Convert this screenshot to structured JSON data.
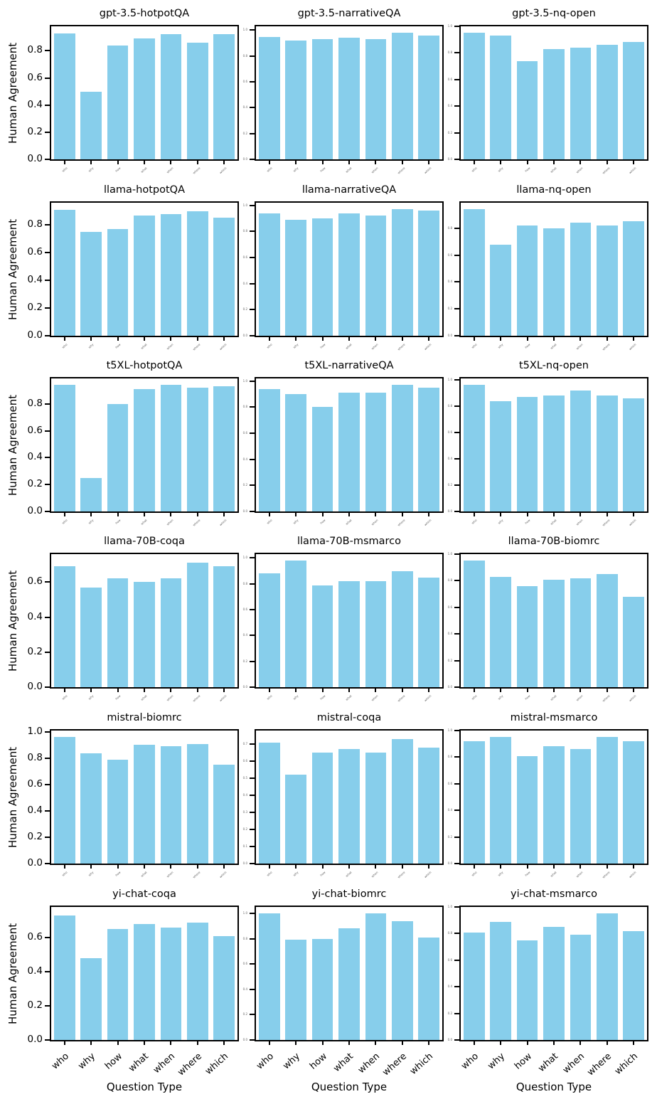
{
  "style": {
    "bar_color": "#87CEEB",
    "axis_color": "#000000",
    "tiny_label_color": "#666666"
  },
  "figure": {
    "ylabel": "Human Agreement",
    "xlabel": "Question Type"
  },
  "chart_data": [
    {
      "type": "bar",
      "title": "gpt-3.5-hotpotQA",
      "categories": [
        "who",
        "why",
        "how",
        "what",
        "when",
        "where",
        "which"
      ],
      "values": [
        0.93,
        0.5,
        0.84,
        0.89,
        0.92,
        0.86,
        0.92
      ],
      "ylim": [
        0,
        0.98
      ],
      "yticks": [
        0,
        0.2,
        0.4,
        0.6,
        0.8
      ],
      "ytick_labels": "full",
      "xtick_labels": "tiny",
      "ylabel": "Human Agreement",
      "xlabel": "",
      "grid": false
    },
    {
      "type": "bar",
      "title": "gpt-3.5-narrativeQA",
      "categories": [
        "who",
        "why",
        "how",
        "what",
        "when",
        "where",
        "which"
      ],
      "values": [
        0.95,
        0.92,
        0.93,
        0.94,
        0.93,
        0.98,
        0.96
      ],
      "ylim": [
        0,
        1.03
      ],
      "yticks": [
        0,
        0.2,
        0.4,
        0.6,
        0.8,
        1.0
      ],
      "ytick_labels": "tiny",
      "xtick_labels": "tiny",
      "ylabel": "",
      "xlabel": "",
      "grid": false
    },
    {
      "type": "bar",
      "title": "gpt-3.5-nq-open",
      "categories": [
        "who",
        "why",
        "how",
        "what",
        "when",
        "where",
        "which"
      ],
      "values": [
        0.95,
        0.93,
        0.74,
        0.83,
        0.84,
        0.86,
        0.88
      ],
      "ylim": [
        0,
        1.0
      ],
      "yticks": [
        0,
        0.2,
        0.4,
        0.6,
        0.8,
        1.0
      ],
      "ytick_labels": "tiny",
      "xtick_labels": "tiny",
      "ylabel": "",
      "xlabel": "",
      "grid": false
    },
    {
      "type": "bar",
      "title": "llama-hotpotQA",
      "categories": [
        "who",
        "why",
        "how",
        "what",
        "when",
        "where",
        "which"
      ],
      "values": [
        0.91,
        0.75,
        0.77,
        0.87,
        0.88,
        0.9,
        0.85
      ],
      "ylim": [
        0,
        0.96
      ],
      "yticks": [
        0,
        0.2,
        0.4,
        0.6,
        0.8
      ],
      "ytick_labels": "full",
      "xtick_labels": "tiny",
      "ylabel": "Human Agreement",
      "xlabel": "",
      "grid": false
    },
    {
      "type": "bar",
      "title": "llama-narrativeQA",
      "categories": [
        "who",
        "why",
        "how",
        "what",
        "when",
        "where",
        "which"
      ],
      "values": [
        0.94,
        0.89,
        0.9,
        0.94,
        0.92,
        0.97,
        0.96
      ],
      "ylim": [
        0,
        1.02
      ],
      "yticks": [
        0,
        0.2,
        0.4,
        0.6,
        0.8,
        1.0
      ],
      "ytick_labels": "tiny",
      "xtick_labels": "tiny",
      "ylabel": "",
      "xlabel": "",
      "grid": false
    },
    {
      "type": "bar",
      "title": "llama-nq-open",
      "categories": [
        "who",
        "why",
        "how",
        "what",
        "when",
        "where",
        "which"
      ],
      "values": [
        0.94,
        0.68,
        0.82,
        0.8,
        0.84,
        0.82,
        0.85
      ],
      "ylim": [
        0,
        0.99
      ],
      "yticks": [
        0,
        0.2,
        0.4,
        0.6,
        0.8
      ],
      "ytick_labels": "tiny",
      "xtick_labels": "tiny",
      "ylabel": "",
      "xlabel": "",
      "grid": false
    },
    {
      "type": "bar",
      "title": "t5XL-hotpotQA",
      "categories": [
        "who",
        "why",
        "how",
        "what",
        "when",
        "where",
        "which"
      ],
      "values": [
        0.94,
        0.25,
        0.8,
        0.91,
        0.94,
        0.92,
        0.93
      ],
      "ylim": [
        0,
        0.99
      ],
      "yticks": [
        0,
        0.2,
        0.4,
        0.6,
        0.8
      ],
      "ytick_labels": "full",
      "xtick_labels": "tiny",
      "ylabel": "Human Agreement",
      "xlabel": "",
      "grid": false
    },
    {
      "type": "bar",
      "title": "t5XL-narrativeQA",
      "categories": [
        "who",
        "why",
        "how",
        "what",
        "when",
        "where",
        "which"
      ],
      "values": [
        0.94,
        0.9,
        0.8,
        0.91,
        0.91,
        0.97,
        0.95
      ],
      "ylim": [
        0,
        1.02
      ],
      "yticks": [
        0,
        0.2,
        0.4,
        0.6,
        0.8,
        1.0
      ],
      "ytick_labels": "tiny",
      "xtick_labels": "tiny",
      "ylabel": "",
      "xlabel": "",
      "grid": false
    },
    {
      "type": "bar",
      "title": "t5XL-nq-open",
      "categories": [
        "who",
        "why",
        "how",
        "what",
        "when",
        "where",
        "which"
      ],
      "values": [
        0.96,
        0.84,
        0.87,
        0.88,
        0.92,
        0.88,
        0.86
      ],
      "ylim": [
        0,
        1.01
      ],
      "yticks": [
        0,
        0.2,
        0.4,
        0.6,
        0.8,
        1.0
      ],
      "ytick_labels": "tiny",
      "xtick_labels": "tiny",
      "ylabel": "",
      "xlabel": "",
      "grid": false
    },
    {
      "type": "bar",
      "title": "llama-70B-coqa",
      "categories": [
        "who",
        "why",
        "how",
        "what",
        "when",
        "where",
        "which"
      ],
      "values": [
        0.69,
        0.57,
        0.62,
        0.6,
        0.62,
        0.71,
        0.69
      ],
      "ylim": [
        0,
        0.76
      ],
      "yticks": [
        0,
        0.2,
        0.4,
        0.6
      ],
      "ytick_labels": "full",
      "xtick_labels": "tiny",
      "ylabel": "Human Agreement",
      "xlabel": "",
      "grid": false
    },
    {
      "type": "bar",
      "title": "llama-70B-msmarco",
      "categories": [
        "who",
        "why",
        "how",
        "what",
        "when",
        "where",
        "which"
      ],
      "values": [
        0.88,
        0.98,
        0.79,
        0.82,
        0.82,
        0.9,
        0.85
      ],
      "ylim": [
        0,
        1.03
      ],
      "yticks": [
        0,
        0.2,
        0.4,
        0.6,
        0.8,
        1.0
      ],
      "ytick_labels": "tiny",
      "xtick_labels": "tiny",
      "ylabel": "",
      "xlabel": "",
      "grid": false
    },
    {
      "type": "bar",
      "title": "llama-70B-biomrc",
      "categories": [
        "who",
        "why",
        "how",
        "what",
        "when",
        "where",
        "which"
      ],
      "values": [
        0.95,
        0.83,
        0.76,
        0.81,
        0.82,
        0.85,
        0.68
      ],
      "ylim": [
        0,
        1.0
      ],
      "yticks": [
        0,
        0.2,
        0.4,
        0.6,
        0.8,
        1.0
      ],
      "ytick_labels": "tiny",
      "xtick_labels": "tiny",
      "ylabel": "",
      "xlabel": "",
      "grid": false
    },
    {
      "type": "bar",
      "title": "mistral-biomrc",
      "categories": [
        "who",
        "why",
        "how",
        "what",
        "when",
        "where",
        "which"
      ],
      "values": [
        0.96,
        0.84,
        0.79,
        0.9,
        0.89,
        0.91,
        0.75
      ],
      "ylim": [
        0,
        1.01
      ],
      "yticks": [
        0,
        0.2,
        0.4,
        0.6,
        0.8,
        1.0
      ],
      "ytick_labels": "full",
      "xtick_labels": "tiny",
      "ylabel": "Human Agreement",
      "xlabel": "",
      "grid": false
    },
    {
      "type": "bar",
      "title": "mistral-coqa",
      "categories": [
        "who",
        "why",
        "how",
        "what",
        "when",
        "where",
        "which"
      ],
      "values": [
        0.71,
        0.52,
        0.65,
        0.67,
        0.65,
        0.73,
        0.68
      ],
      "ylim": [
        0,
        0.78
      ],
      "yticks": [
        0,
        0.1,
        0.2,
        0.3,
        0.4,
        0.5,
        0.6,
        0.7
      ],
      "ytick_labels": "tiny",
      "xtick_labels": "tiny",
      "ylabel": "",
      "xlabel": "",
      "grid": false
    },
    {
      "type": "bar",
      "title": "mistral-msmarco",
      "categories": [
        "who",
        "why",
        "how",
        "what",
        "when",
        "where",
        "which"
      ],
      "values": [
        0.92,
        0.95,
        0.81,
        0.88,
        0.86,
        0.95,
        0.92
      ],
      "ylim": [
        0,
        1.0
      ],
      "yticks": [
        0,
        0.2,
        0.4,
        0.6,
        0.8,
        1.0
      ],
      "ytick_labels": "tiny",
      "xtick_labels": "tiny",
      "ylabel": "",
      "xlabel": "",
      "grid": false
    },
    {
      "type": "bar",
      "title": "yi-chat-coqa",
      "categories": [
        "who",
        "why",
        "how",
        "what",
        "when",
        "where",
        "which"
      ],
      "values": [
        0.73,
        0.48,
        0.65,
        0.68,
        0.66,
        0.69,
        0.61
      ],
      "ylim": [
        0,
        0.78
      ],
      "yticks": [
        0,
        0.2,
        0.4,
        0.6
      ],
      "ytick_labels": "full",
      "xtick_labels": "full",
      "ylabel": "Human Agreement",
      "xlabel": "Question Type",
      "grid": false
    },
    {
      "type": "bar",
      "title": "yi-chat-biomrc",
      "categories": [
        "who",
        "why",
        "how",
        "what",
        "when",
        "where",
        "which"
      ],
      "values": [
        1.0,
        0.79,
        0.8,
        0.88,
        1.0,
        0.94,
        0.81
      ],
      "ylim": [
        0,
        1.05
      ],
      "yticks": [
        0,
        0.2,
        0.4,
        0.6,
        0.8,
        1.0
      ],
      "ytick_labels": "tiny",
      "xtick_labels": "full",
      "ylabel": "",
      "xlabel": "Question Type",
      "grid": false
    },
    {
      "type": "bar",
      "title": "yi-chat-msmarco",
      "categories": [
        "who",
        "why",
        "how",
        "what",
        "when",
        "where",
        "which"
      ],
      "values": [
        0.81,
        0.89,
        0.75,
        0.85,
        0.79,
        0.95,
        0.82
      ],
      "ylim": [
        0,
        1.0
      ],
      "yticks": [
        0,
        0.2,
        0.4,
        0.6,
        0.8,
        1.0
      ],
      "ytick_labels": "tiny",
      "xtick_labels": "full",
      "ylabel": "",
      "xlabel": "Question Type",
      "grid": false
    }
  ]
}
